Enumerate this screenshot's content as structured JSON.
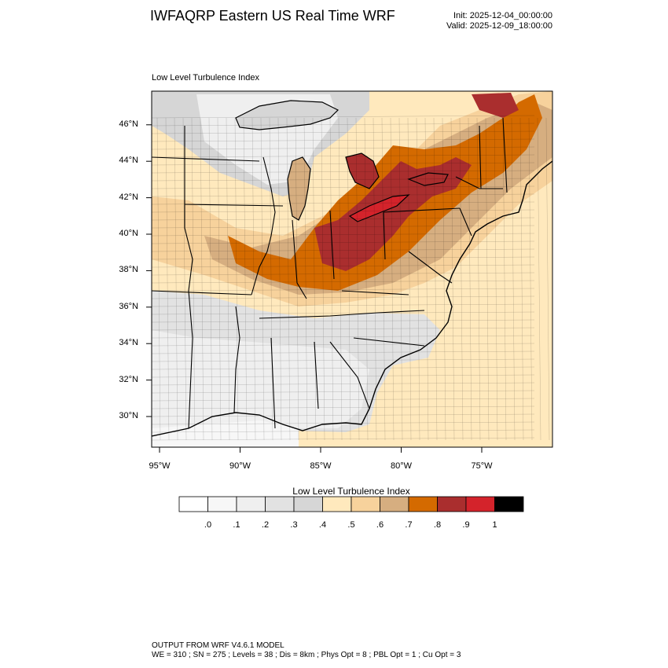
{
  "header": {
    "title": "IWFAQRP Eastern US Real Time WRF",
    "init": "Init: 2025-12-04_00:00:00",
    "valid": "Valid: 2025-12-09_18:00:00"
  },
  "map": {
    "field_title": "Low Level Turbulence Index",
    "lat_labels": [
      "46°N",
      "44°N",
      "42°N",
      "40°N",
      "38°N",
      "36°N",
      "34°N",
      "32°N",
      "30°N"
    ],
    "lon_labels": [
      "95°W",
      "90°W",
      "85°W",
      "80°W",
      "75°W"
    ],
    "lat_values": [
      46,
      44,
      42,
      40,
      38,
      36,
      34,
      32,
      30
    ],
    "lon_values": [
      -95,
      -90,
      -85,
      -80,
      -75
    ]
  },
  "colorbar": {
    "title": "Low Level Turbulence Index",
    "labels": [
      ".0",
      ".1",
      ".2",
      ".3",
      ".4",
      ".5",
      ".6",
      ".7",
      ".8",
      ".9",
      "1"
    ],
    "colors": [
      "#ffffff",
      "#f7f7f7",
      "#efefef",
      "#e2e2e2",
      "#d6d6d6",
      "#ffe9bd",
      "#f7d29c",
      "#d6ae80",
      "#d46a00",
      "#aa2e2e",
      "#d4232b",
      "#000000"
    ]
  },
  "footer": {
    "line1": "OUTPUT FROM WRF V4.6.1 MODEL",
    "line2": "WE = 310 ; SN = 275 ; Levels = 38 ; Dis = 8km ; Phys Opt = 8 ; PBL Opt = 1 ; Cu Opt = 3"
  }
}
